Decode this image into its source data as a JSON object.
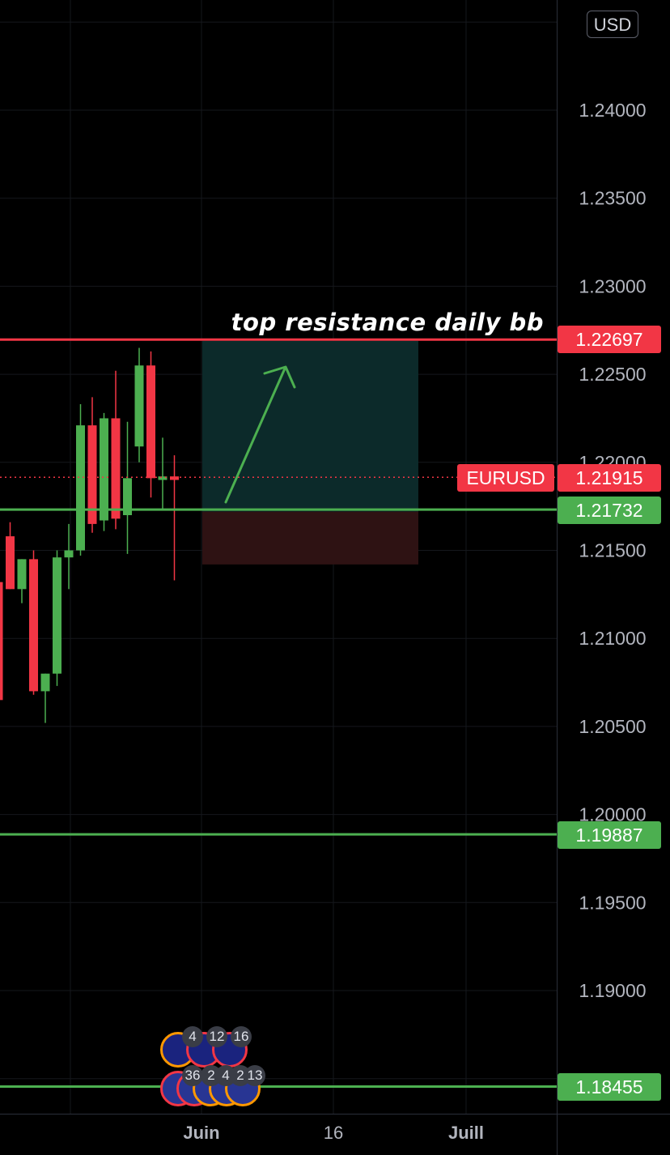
{
  "currency_badge": "USD",
  "annotation": "top resistance daily bb",
  "symbol_label": "EURUSD",
  "time_axis": {
    "labels": [
      "Juin",
      "16",
      "Juill"
    ]
  },
  "events": {
    "us_counts": [
      "4",
      "12",
      "16"
    ],
    "eu_counts": [
      "36",
      "2",
      "4",
      "2",
      "13"
    ]
  },
  "colors": {
    "up": "#4caf50",
    "down": "#f23645",
    "resistance": "#f23645",
    "support": "#4caf50",
    "target_zone": "#0c2a2a",
    "stop_zone": "#2e1213",
    "arrow": "#4caf50"
  },
  "chart_data": {
    "type": "candlestick",
    "symbol": "EURUSD",
    "currency": "USD",
    "timeframe_days": "daily",
    "ylim": [
      1.1815,
      1.259
    ],
    "y_ticks": [
      "1.24000",
      "1.23500",
      "1.23000",
      "1.22500",
      "1.22000",
      "1.21500",
      "1.21000",
      "1.20500",
      "1.20000",
      "1.19500",
      "1.19000"
    ],
    "current_price": "1.21915",
    "horizontal_lines": [
      {
        "price": "1.22697",
        "color": "red",
        "label": "top resistance daily bb"
      },
      {
        "price": "1.21732",
        "color": "green"
      },
      {
        "price": "1.19887",
        "color": "green"
      },
      {
        "price": "1.18455",
        "color": "green"
      }
    ],
    "position_box": {
      "entry": 1.2172,
      "target": 1.2269,
      "stop": 1.2142
    },
    "candles": [
      {
        "o": 1.2132,
        "h": 1.2162,
        "l": 1.2065,
        "c": 1.2065
      },
      {
        "o": 1.2158,
        "h": 1.2166,
        "l": 1.2128,
        "c": 1.2128
      },
      {
        "o": 1.2128,
        "h": 1.2145,
        "l": 1.212,
        "c": 1.2145
      },
      {
        "o": 1.2145,
        "h": 1.215,
        "l": 1.2068,
        "c": 1.207
      },
      {
        "o": 1.207,
        "h": 1.208,
        "l": 1.2052,
        "c": 1.208
      },
      {
        "o": 1.208,
        "h": 1.215,
        "l": 1.2073,
        "c": 1.2146
      },
      {
        "o": 1.2146,
        "h": 1.2165,
        "l": 1.2128,
        "c": 1.215
      },
      {
        "o": 1.215,
        "h": 1.2233,
        "l": 1.2147,
        "c": 1.2221
      },
      {
        "o": 1.2221,
        "h": 1.2237,
        "l": 1.216,
        "c": 1.2165
      },
      {
        "o": 1.2167,
        "h": 1.2228,
        "l": 1.2161,
        "c": 1.2225
      },
      {
        "o": 1.2225,
        "h": 1.2252,
        "l": 1.2162,
        "c": 1.2168
      },
      {
        "o": 1.217,
        "h": 1.2223,
        "l": 1.2148,
        "c": 1.2191
      },
      {
        "o": 1.2209,
        "h": 1.2265,
        "l": 1.22,
        "c": 1.2255
      },
      {
        "o": 1.2255,
        "h": 1.2263,
        "l": 1.218,
        "c": 1.2191
      },
      {
        "o": 1.219,
        "h": 1.2214,
        "l": 1.2173,
        "c": 1.2192
      },
      {
        "o": 1.2192,
        "h": 1.2204,
        "l": 1.2133,
        "c": 1.219
      }
    ]
  }
}
